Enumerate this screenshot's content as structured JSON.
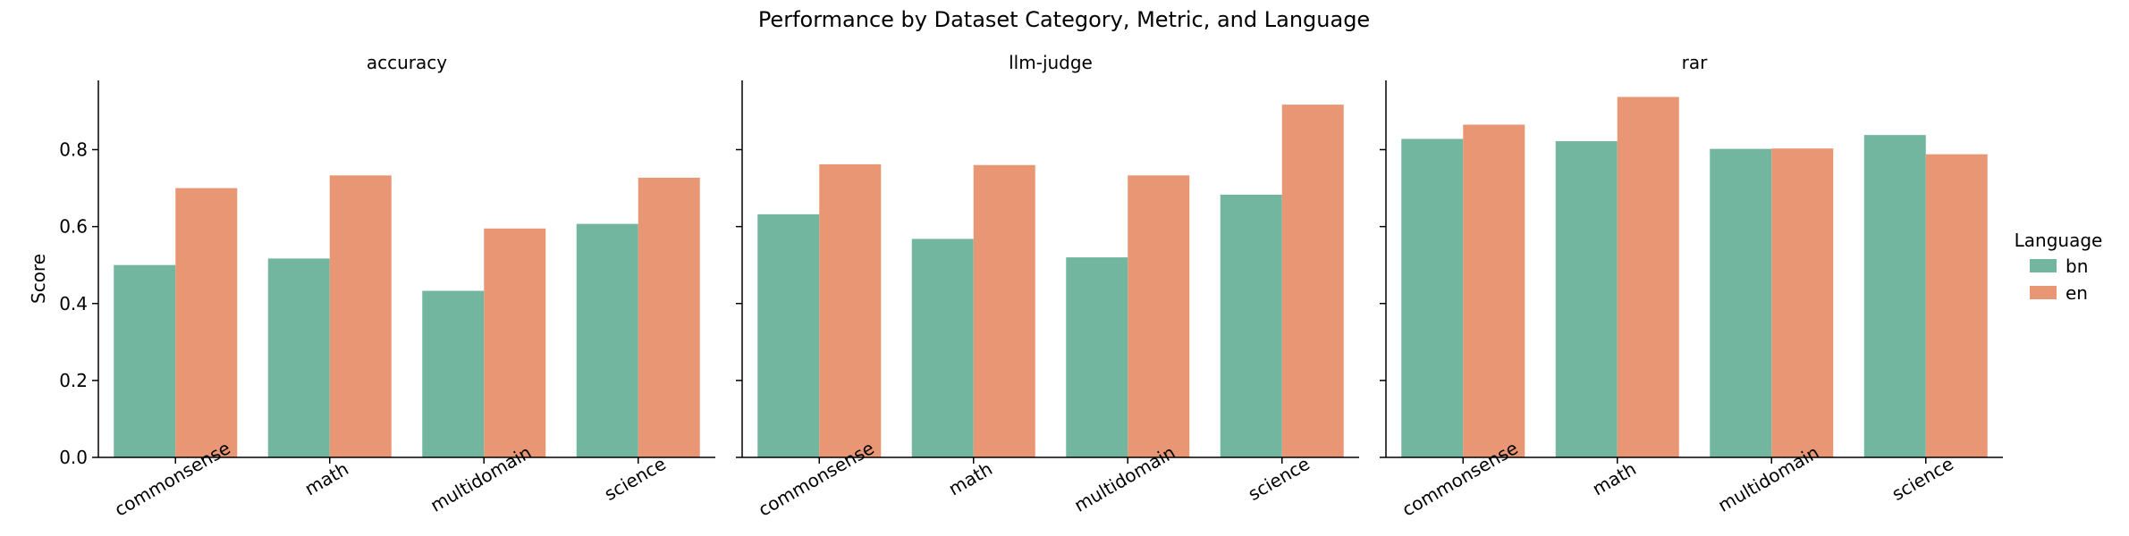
{
  "chart_data": {
    "type": "bar",
    "title": "Performance by Dataset Category, Metric, and Language",
    "ylabel": "Score",
    "ylim": [
      0,
      0.98
    ],
    "yticks": [
      "0.0",
      "0.2",
      "0.4",
      "0.6",
      "0.8"
    ],
    "categories": [
      "commonsense",
      "math",
      "multidomain",
      "science"
    ],
    "legend": {
      "title": "Language",
      "placement": "right",
      "entries": [
        "bn",
        "en"
      ]
    },
    "colors": {
      "bn": "#73b6a0",
      "en": "#e89673"
    },
    "panels": [
      {
        "name": "accuracy",
        "series": [
          {
            "name": "bn",
            "values": [
              0.5,
              0.517,
              0.433,
              0.607
            ]
          },
          {
            "name": "en",
            "values": [
              0.7,
              0.733,
              0.595,
              0.727
            ]
          }
        ]
      },
      {
        "name": "llm-judge",
        "series": [
          {
            "name": "bn",
            "values": [
              0.632,
              0.568,
              0.52,
              0.683
            ]
          },
          {
            "name": "en",
            "values": [
              0.762,
              0.76,
              0.733,
              0.917
            ]
          }
        ]
      },
      {
        "name": "rar",
        "series": [
          {
            "name": "bn",
            "values": [
              0.828,
              0.822,
              0.802,
              0.838
            ]
          },
          {
            "name": "en",
            "values": [
              0.865,
              0.937,
              0.803,
              0.788
            ]
          }
        ]
      }
    ]
  }
}
